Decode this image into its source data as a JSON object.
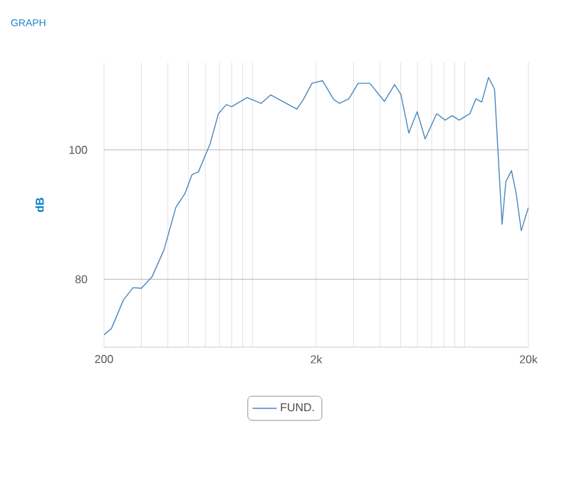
{
  "chart_data": {
    "type": "line",
    "title": "GRAPH",
    "ylabel": "dB",
    "x": [
      200,
      217,
      247,
      274,
      300,
      337,
      383,
      436,
      482,
      520,
      557,
      632,
      692,
      754,
      800,
      944,
      1100,
      1220,
      1390,
      1620,
      1740,
      1910,
      2140,
      2420,
      2570,
      2850,
      3150,
      3580,
      4190,
      4680,
      5010,
      5460,
      5980,
      6520,
      7390,
      8090,
      8740,
      9440,
      10200,
      10600,
      11300,
      12050,
      12960,
      13840,
      15020,
      15650,
      16640,
      17500,
      18500,
      19980
    ],
    "series": [
      {
        "name": "FUND.",
        "color": "#4a86c0",
        "values": [
          71.4,
          72.4,
          76.8,
          78.7,
          78.6,
          80.4,
          84.5,
          91.1,
          93.3,
          96.2,
          96.6,
          100.9,
          105.6,
          107,
          106.7,
          108.1,
          107.2,
          108.5,
          107.5,
          106.3,
          107.8,
          110.3,
          110.7,
          107.8,
          107.2,
          107.9,
          110.3,
          110.3,
          107.5,
          110.1,
          108.6,
          102.6,
          105.9,
          101.7,
          105.6,
          104.6,
          105.3,
          104.6,
          105.3,
          105.6,
          107.9,
          107.4,
          111.2,
          109.4,
          88.5,
          95.1,
          96.8,
          93.3,
          87.5,
          91.1
        ]
      }
    ],
    "xlim": [
      200,
      20000
    ],
    "ylim": [
      69.5,
      113.5
    ],
    "yticks": [
      80,
      100
    ],
    "xticks": [
      {
        "value": 200,
        "label": "200"
      },
      {
        "value": 2000,
        "label": "2k"
      },
      {
        "value": 20000,
        "label": "20k"
      }
    ],
    "log": "x",
    "grid": true,
    "legend": "bottom"
  }
}
